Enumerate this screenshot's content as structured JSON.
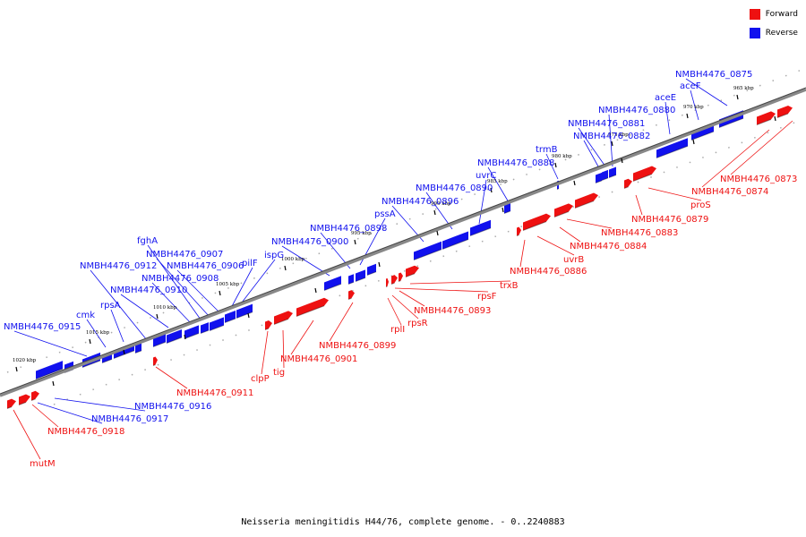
{
  "colors": {
    "forward": "#ee1111",
    "reverse": "#1111ee",
    "backbone": "#777777",
    "tick": "#000000"
  },
  "legend": {
    "forward_label": "Forward",
    "reverse_label": "Reverse"
  },
  "title": "Neisseria meningitidis H44/76, complete genome. - 0..2240883",
  "scale_labels": [
    "965 kbp",
    "970 kbp",
    "975 kbp",
    "980 kbp",
    "985 kbp",
    "990 kbp",
    "995 kbp",
    "1000 kbp",
    "1005 kbp",
    "1010 kbp",
    "1015 kbp",
    "1020 kbp"
  ],
  "reverse_genes": [
    "NMBH4476_0875",
    "aceF",
    "aceE",
    "NMBH4476_0880",
    "NMBH4476_0881",
    "NMBH4476_0882",
    "trmB",
    "NMBH4476_0888",
    "uvrC",
    "NMBH4476_0890",
    "NMBH4476_0896",
    "pssA",
    "NMBH4476_0898",
    "NMBH4476_0900",
    "ispG",
    "pilF",
    "NMBH4476_0906",
    "NMBH4476_0907",
    "fghA",
    "NMBH4476_0908",
    "NMBH4476_0912",
    "NMBH4476_0910",
    "rpsA",
    "cmk",
    "NMBH4476_0915",
    "NMBH4476_0916",
    "NMBH4476_0917"
  ],
  "forward_genes": [
    "NMBH4476_0873",
    "NMBH4476_0874",
    "proS",
    "NMBH4476_0879",
    "NMBH4476_0883",
    "NMBH4476_0884",
    "uvrB",
    "NMBH4476_0886",
    "trxB",
    "rpsF",
    "NMBH4476_0893",
    "rpsR",
    "rplI",
    "NMBH4476_0899",
    "NMBH4476_0901",
    "tig",
    "clpP",
    "NMBH4476_0911",
    "NMBH4476_0918",
    "mutM"
  ]
}
